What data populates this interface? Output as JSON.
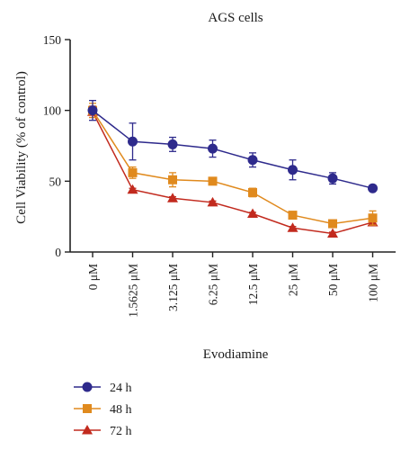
{
  "chart_data": {
    "type": "line",
    "title": "AGS cells",
    "xlabel": "Evodiamine",
    "ylabel": "Cell Viability (% of control)",
    "ylim": [
      0,
      150
    ],
    "yticks": [
      0,
      50,
      100,
      150
    ],
    "categories": [
      "0 μM",
      "1.5625 μM",
      "3.125 μM",
      "6.25 μM",
      "12.5 μM",
      "25 μM",
      "50 μM",
      "100 μM"
    ],
    "grid": false,
    "legend_position": "bottom-left",
    "series": [
      {
        "name": "24 h",
        "color": "#2e2a8c",
        "marker": "circle",
        "values": [
          100,
          78,
          76,
          73,
          65,
          58,
          52,
          45
        ],
        "errors": [
          7,
          13,
          5,
          6,
          5,
          7,
          4,
          1
        ]
      },
      {
        "name": "48 h",
        "color": "#e08a1e",
        "marker": "square",
        "values": [
          100,
          56,
          51,
          50,
          42,
          26,
          20,
          24
        ],
        "errors": [
          5,
          4,
          5,
          2,
          3,
          1,
          2,
          5
        ]
      },
      {
        "name": "72 h",
        "color": "#c22a1e",
        "marker": "triangle",
        "values": [
          99,
          44,
          38,
          35,
          27,
          17,
          13,
          21
        ],
        "errors": [
          4,
          1,
          1,
          1,
          1,
          1,
          1,
          2
        ]
      }
    ]
  }
}
